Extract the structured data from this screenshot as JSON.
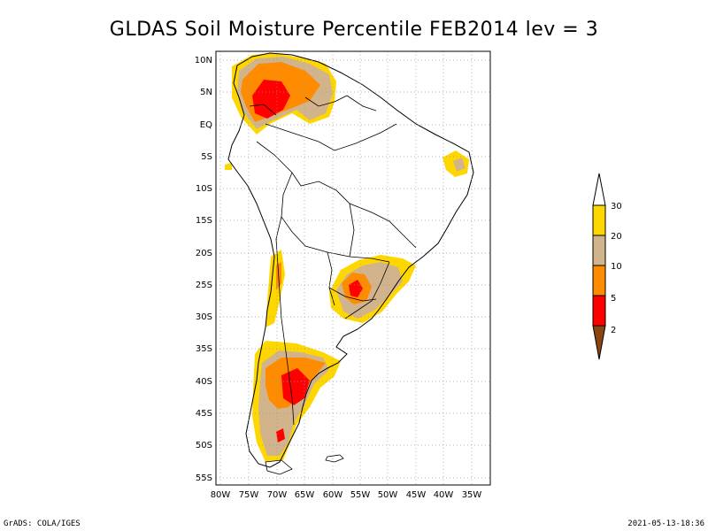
{
  "title": "GLDAS Soil Moisture Percentile FEB2014 lev = 3",
  "footer": {
    "left": "GrADS: COLA/IGES",
    "right": "2021-05-13-18:36"
  },
  "axes": {
    "lat_labels": [
      "10N",
      "5N",
      "EQ",
      "5S",
      "10S",
      "15S",
      "20S",
      "25S",
      "30S",
      "35S",
      "40S",
      "45S",
      "50S",
      "55S"
    ],
    "lon_labels": [
      "80W",
      "75W",
      "70W",
      "65W",
      "60W",
      "55W",
      "50W",
      "45W",
      "40W",
      "35W"
    ],
    "lon_range": [
      -81,
      -33
    ],
    "lat_range": [
      -56,
      12
    ]
  },
  "legend": {
    "labels": [
      "2",
      "5",
      "10",
      "20",
      "30"
    ],
    "colors": {
      "below_2": "#8b4513",
      "2_5": "#ff0000",
      "5_10": "#ff8c00",
      "10_20": "#d2b48c",
      "20_30": "#ffd700",
      "above_30": "#ffffff"
    }
  },
  "map": {
    "region": "South America",
    "grid": "dotted"
  }
}
